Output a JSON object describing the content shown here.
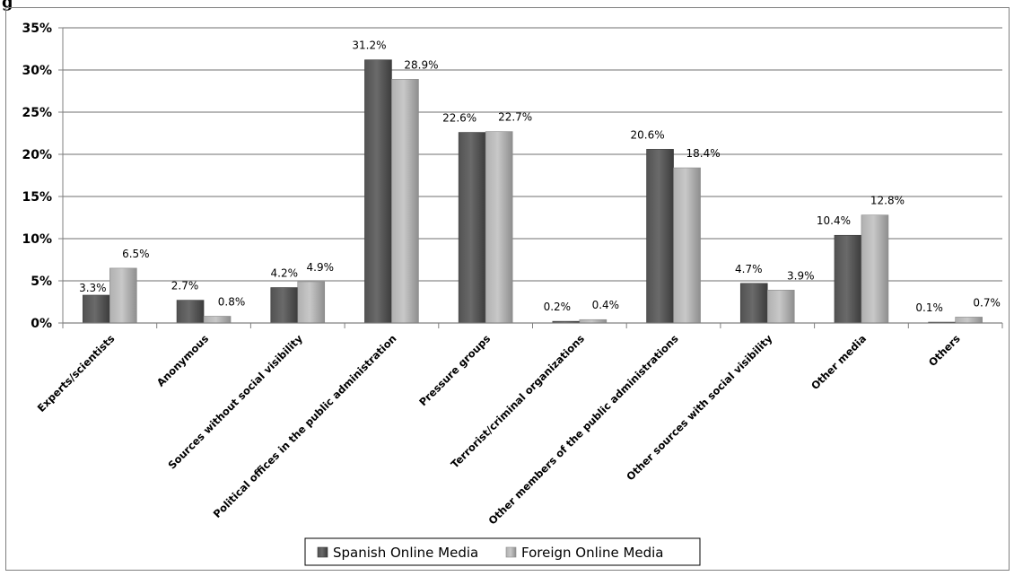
{
  "figure_label": "g",
  "chart_data": {
    "type": "bar",
    "title": "",
    "xlabel": "",
    "ylabel": "",
    "ylim": [
      0,
      35
    ],
    "yticks": [
      0,
      5,
      10,
      15,
      20,
      25,
      30,
      35
    ],
    "y_tick_suffix": "%",
    "grid": true,
    "legend_position": "bottom-center",
    "categories": [
      "Experts/scientists",
      "Anonymous",
      "Sources without social visibility",
      "Political offices in the public administration",
      "Pressure groups",
      "Terrorist/criminal organizations",
      "Other members of the public administrations",
      "Other sources with social visibility",
      "Other media",
      "Others"
    ],
    "series": [
      {
        "name": "Spanish Online Media",
        "color": "#525252",
        "values": [
          3.3,
          2.7,
          4.2,
          31.2,
          22.6,
          0.2,
          20.6,
          4.7,
          10.4,
          0.1
        ],
        "labels": [
          "3.3%",
          "2.7%",
          "4.2%",
          "31.2%",
          "22.6%",
          "0.2%",
          "20.6%",
          "4.7%",
          "10.4%",
          "0.1%"
        ]
      },
      {
        "name": "Foreign Online Media",
        "color": "#b0b0b0",
        "values": [
          6.5,
          0.8,
          4.9,
          28.9,
          22.7,
          0.4,
          18.4,
          3.9,
          12.8,
          0.7
        ],
        "labels": [
          "6.5%",
          "0.8%",
          "4.9%",
          "28.9%",
          "22.7%",
          "0.4%",
          "18.4%",
          "3.9%",
          "12.8%",
          "0.7%"
        ]
      }
    ]
  }
}
